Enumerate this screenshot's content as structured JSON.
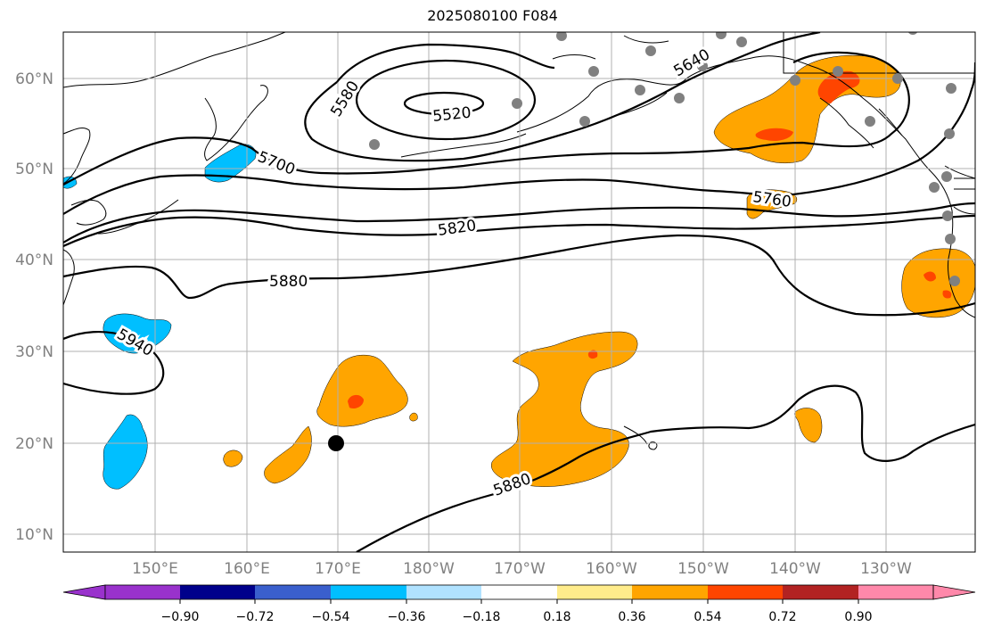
{
  "title": "2025080100 F084",
  "map": {
    "lat_labels": [
      "10°N",
      "20°N",
      "30°N",
      "40°N",
      "50°N",
      "60°N"
    ],
    "lon_labels": [
      "150°E",
      "160°E",
      "170°E",
      "180°W",
      "170°W",
      "160°W",
      "150°W",
      "140°W",
      "130°W"
    ],
    "contour_labels": [
      "5520",
      "5580",
      "5640",
      "5700",
      "5760",
      "5820",
      "5880",
      "5940",
      "5880"
    ],
    "colors": {
      "contour": "#000000",
      "grid": "#b0b0b0",
      "tick_label": "#808080",
      "positive_fill": "#ffa500",
      "strong_positive_fill": "#ff4500",
      "negative_fill": "#00bfff",
      "station_dot": "#808080"
    }
  },
  "colorbar": {
    "ticks": [
      "−0.90",
      "−0.72",
      "−0.54",
      "−0.36",
      "−0.18",
      "0.18",
      "0.36",
      "0.54",
      "0.72",
      "0.90"
    ],
    "colors": [
      "#9932cc",
      "#00008b",
      "#3a5fcd",
      "#00bfff",
      "#b0e2ff",
      "#ffffff",
      "#ffec8b",
      "#ffa500",
      "#ff4500",
      "#b22222",
      "#ff88aa"
    ]
  }
}
